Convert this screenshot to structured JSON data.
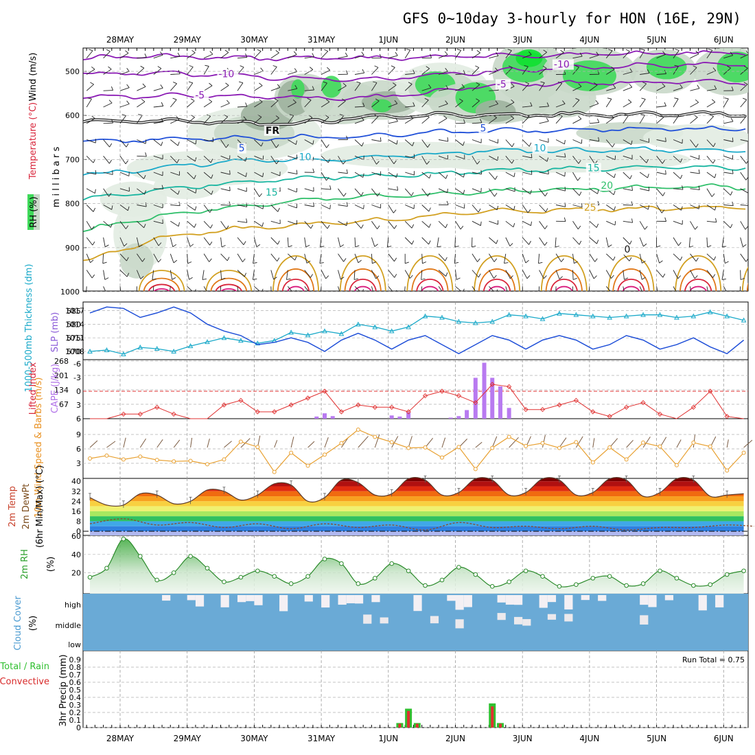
{
  "title": "GFS 0~10day 3-hourly for HON (16E, 29N)",
  "dates": [
    "28MAY",
    "29MAY",
    "30MAY",
    "31MAY",
    "1JUN",
    "2JUN",
    "3JUN",
    "4JUN",
    "5JUN",
    "6JUN"
  ],
  "colors": {
    "purple": "#8a1ab4",
    "blue": "#1f4fd8",
    "cyan": "#19a9c9",
    "teal": "#17b5a0",
    "green": "#2fbf6a",
    "gold": "#d2a020",
    "orange": "#e07818",
    "red": "#d8243a",
    "magenta": "#d8187a",
    "rhfill": "#c9d8c9",
    "rhdark": "#9fb39f",
    "rhgreen": "#3fd95a",
    "cloud": "#6aaad6"
  },
  "chart_data": [
    {
      "type": "contour",
      "panel": "upper-air",
      "ylabel": "m i l l i b a r s",
      "legend_labels": [
        "Wind (m/s)",
        "Temperature (°C)",
        "RH (%)"
      ],
      "ytick_labels": [
        "500",
        "600",
        "700",
        "800",
        "900",
        "1000"
      ],
      "yticks": [
        500,
        600,
        700,
        800,
        900,
        1000
      ],
      "ylim": [
        1000,
        450
      ],
      "isotherm_labels": [
        {
          "text": "-10",
          "level": -10,
          "day": 1.55,
          "p": 512
        },
        {
          "text": "-5",
          "level": -5,
          "day": 1.2,
          "p": 560
        },
        {
          "text": "FR",
          "level": 0,
          "day": 2.25,
          "p": 640
        },
        {
          "text": "5",
          "level": 5,
          "day": 1.85,
          "p": 680
        },
        {
          "text": "10",
          "level": 10,
          "day": 2.75,
          "p": 700
        },
        {
          "text": "15",
          "level": 15,
          "day": 2.25,
          "p": 780
        },
        {
          "text": "-10",
          "level": -10,
          "day": 6.55,
          "p": 490
        },
        {
          "text": "-5",
          "level": -5,
          "day": 5.7,
          "p": 535
        },
        {
          "text": "5",
          "level": 5,
          "day": 5.45,
          "p": 635
        },
        {
          "text": "10",
          "level": 10,
          "day": 6.25,
          "p": 680
        },
        {
          "text": "15",
          "level": 15,
          "day": 7.05,
          "p": 725
        },
        {
          "text": "20",
          "level": 20,
          "day": 7.25,
          "p": 765
        },
        {
          "text": "25",
          "level": 25,
          "day": 7.0,
          "p": 815
        },
        {
          "text": "0",
          "level": 0,
          "day": 7.6,
          "p": 910
        }
      ]
    },
    {
      "type": "line",
      "panel": "sfc-pressure",
      "legend_labels": [
        "1000-500mb Thickness (dm)",
        "SLP (mb)"
      ],
      "left_ticks": [
        "585",
        "580",
        "575",
        "570"
      ],
      "right_ticks": [
        "1017",
        "1014",
        "1011",
        "1008"
      ],
      "series": [
        {
          "name": "1000-500mb Thickness (dm)",
          "unit": "dm",
          "x": [
            0,
            0.25,
            0.5,
            0.75,
            1,
            1.25,
            1.5,
            1.75,
            2,
            2.25,
            2.5,
            2.75,
            3,
            3.25,
            3.5,
            3.75,
            4,
            4.25,
            4.5,
            4.75,
            5,
            5.25,
            5.5,
            5.75,
            6,
            6.25,
            6.5,
            6.75,
            7,
            7.25,
            7.5,
            7.75,
            8,
            8.25,
            8.5,
            8.75,
            9,
            9.25,
            9.5,
            9.75
          ],
          "y": [
            570,
            570.5,
            569,
            571.5,
            571,
            570,
            572,
            573.5,
            575,
            574,
            573,
            574,
            577,
            576,
            577.5,
            576.5,
            580,
            579,
            577.5,
            579,
            583,
            582.5,
            581,
            580.5,
            581,
            583.5,
            583,
            582,
            584,
            583.5,
            583,
            582.5,
            583,
            583.5,
            583.5,
            582.5,
            583,
            584.5,
            583,
            581.5
          ]
        },
        {
          "name": "SLP (mb)",
          "unit": "mb",
          "x": [
            0,
            0.25,
            0.5,
            0.75,
            1,
            1.25,
            1.5,
            1.75,
            2,
            2.25,
            2.5,
            2.75,
            3,
            3.25,
            3.5,
            3.75,
            4,
            4.25,
            4.5,
            4.75,
            5,
            5.25,
            5.5,
            5.75,
            6,
            6.25,
            6.5,
            6.75,
            7,
            7.25,
            7.5,
            7.75,
            8,
            8.25,
            8.5,
            8.75,
            9,
            9.25,
            9.5,
            9.75
          ],
          "y": [
            1016.5,
            1017.8,
            1017.5,
            1015.5,
            1016.5,
            1017.8,
            1016.5,
            1014,
            1012.5,
            1011.5,
            1009.5,
            1010,
            1011,
            1010,
            1008,
            1010.5,
            1012,
            1010.5,
            1008.5,
            1010.5,
            1011.5,
            1009.5,
            1007.5,
            1009.5,
            1011.5,
            1010.5,
            1008.5,
            1010.5,
            1011.5,
            1010.5,
            1008.5,
            1009.5,
            1011.5,
            1010.5,
            1008.5,
            1009.5,
            1011,
            1009,
            1007.5,
            1010.5
          ]
        }
      ]
    },
    {
      "type": "bar+line",
      "panel": "stability",
      "legend_labels": [
        "Lifted Index",
        "CAPE (J/kg)"
      ],
      "li_ticks": [
        "-6",
        "-3",
        "0",
        "3",
        "6"
      ],
      "cape_ticks": [
        "268",
        "201",
        "134",
        "67"
      ],
      "series": [
        {
          "name": "Lifted Index",
          "x": [
            0,
            0.25,
            0.5,
            0.75,
            1,
            1.25,
            1.5,
            1.75,
            2,
            2.25,
            2.5,
            2.75,
            3,
            3.25,
            3.5,
            3.75,
            4,
            4.25,
            4.5,
            4.75,
            5,
            5.25,
            5.5,
            5.75,
            6,
            6.25,
            6.5,
            6.75,
            7,
            7.25,
            7.5,
            7.75,
            8,
            8.25,
            8.5,
            8.75,
            9,
            9.25,
            9.5,
            9.75
          ],
          "y": [
            6,
            6,
            5,
            5,
            3.5,
            5,
            6,
            6,
            3,
            2,
            4.5,
            4.5,
            3,
            1.5,
            0,
            4.5,
            3,
            3.5,
            3.5,
            4.5,
            1,
            0,
            1,
            2.5,
            -1.5,
            -1,
            4,
            4,
            3,
            2,
            4.5,
            5.5,
            3.5,
            2.5,
            5,
            6,
            3.5,
            0,
            5.5,
            6
          ]
        },
        {
          "name": "CAPE (J/kg)",
          "x": [
            3.38,
            3.5,
            3.62,
            4.5,
            4.62,
            4.75,
            5.38,
            5.5,
            5.62,
            5.75,
            5.88,
            6.0,
            6.12,
            6.25
          ],
          "y": [
            10,
            25,
            12,
            15,
            10,
            30,
            5,
            12,
            40,
            190,
            260,
            190,
            150,
            50
          ]
        }
      ]
    },
    {
      "type": "line",
      "panel": "wind10m",
      "legend_labels": [
        "10m Wind Speed & Barbs (m/s)"
      ],
      "ytick_labels": [
        "9",
        "6",
        "3"
      ],
      "series": [
        {
          "name": "10m Wind Speed & Barbs (m/s)",
          "unit": "m/s",
          "x": [
            0,
            0.25,
            0.5,
            0.75,
            1,
            1.25,
            1.5,
            1.75,
            2,
            2.25,
            2.5,
            2.75,
            3,
            3.25,
            3.5,
            3.75,
            4,
            4.25,
            4.5,
            4.75,
            5,
            5.25,
            5.5,
            5.75,
            6,
            6.25,
            6.5,
            6.75,
            7,
            7.25,
            7.5,
            7.75,
            8,
            8.25,
            8.5,
            8.75,
            9,
            9.25,
            9.5,
            9.75
          ],
          "y": [
            4,
            4.6,
            3.8,
            4.4,
            3.7,
            3.4,
            3.5,
            2.8,
            3.8,
            7.5,
            6.4,
            1.2,
            5.2,
            2.5,
            4.8,
            7.2,
            10,
            8.5,
            7.4,
            6.2,
            6.3,
            4.2,
            6.4,
            1.8,
            6.2,
            8.5,
            6.6,
            7.2,
            6.2,
            7.4,
            3.2,
            6.3,
            3.8,
            7.3,
            6.5,
            2.6,
            7.3,
            6.5,
            1.5,
            5.2
          ]
        }
      ]
    },
    {
      "type": "area",
      "panel": "temp2m",
      "legend_labels": [
        "2m Temp",
        "2m DewPt",
        "(6hr Min/Max) (°C)"
      ],
      "ytick_labels": [
        "40",
        "32",
        "24",
        "16",
        "8",
        "0"
      ],
      "series": [
        {
          "name": "2m Temp",
          "unit": "°C",
          "x": [
            0,
            0.25,
            0.5,
            0.75,
            1,
            1.25,
            1.5,
            1.75,
            2,
            2.25,
            2.5,
            2.75,
            3,
            3.25,
            3.5,
            3.75,
            4,
            4.25,
            4.5,
            4.75,
            5,
            5.25,
            5.5,
            5.75,
            6,
            6.25,
            6.5,
            6.75,
            7,
            7.25,
            7.5,
            7.75,
            8,
            8.25,
            8.5,
            8.75,
            9,
            9.25,
            9.5,
            9.75
          ],
          "y": [
            27,
            21,
            21,
            30,
            29,
            22,
            24,
            33,
            32,
            25,
            29,
            38,
            37,
            24,
            27,
            41,
            39,
            29,
            30,
            42,
            41,
            29,
            31,
            42,
            41,
            29,
            31,
            42,
            41,
            29,
            31,
            42,
            41,
            28,
            31,
            42,
            41,
            28,
            29,
            30
          ]
        },
        {
          "name": "2m DewPt",
          "unit": "°C",
          "x": [
            0,
            0.5,
            1,
            1.5,
            2,
            2.5,
            3,
            3.5,
            4,
            4.5,
            5,
            5.5,
            6,
            6.5,
            7,
            7.5,
            8,
            8.5,
            9,
            9.5,
            9.9
          ],
          "y": [
            6,
            10,
            5,
            7,
            3,
            6,
            2,
            6,
            3,
            5,
            1,
            7,
            3,
            4,
            2,
            4,
            1,
            3,
            3,
            5,
            4
          ]
        }
      ]
    },
    {
      "type": "area",
      "panel": "rh2m",
      "legend_labels": [
        "2m RH",
        "(%)"
      ],
      "ytick_labels": [
        "60",
        "40",
        "20"
      ],
      "series": [
        {
          "name": "2m RH",
          "unit": "%",
          "x": [
            0,
            0.25,
            0.5,
            0.75,
            1,
            1.25,
            1.5,
            1.75,
            2,
            2.25,
            2.5,
            2.75,
            3,
            3.25,
            3.5,
            3.75,
            4,
            4.25,
            4.5,
            4.75,
            5,
            5.25,
            5.5,
            5.75,
            6,
            6.25,
            6.5,
            6.75,
            7,
            7.25,
            7.5,
            7.75,
            8,
            8.25,
            8.5,
            8.75,
            9,
            9.25,
            9.5,
            9.75
          ],
          "y": [
            15,
            25,
            57,
            38,
            12,
            20,
            38,
            25,
            10,
            15,
            22,
            16,
            8,
            16,
            35,
            30,
            8,
            14,
            30,
            22,
            6,
            12,
            26,
            18,
            5,
            10,
            22,
            16,
            5,
            7,
            14,
            16,
            6,
            8,
            22,
            14,
            6,
            7,
            18,
            22
          ]
        }
      ]
    },
    {
      "type": "heatmap",
      "panel": "cloud",
      "legend_labels": [
        "Cloud Cover",
        "(%)"
      ],
      "ytick_labels": [
        "high",
        "middle",
        "low"
      ]
    },
    {
      "type": "bar",
      "panel": "precip",
      "legend_labels": [
        "Total / Rain",
        "Convective",
        "3hr Precip (mm)"
      ],
      "run_total": "Run Total = 0.75",
      "ytick_labels": [
        "0.8",
        "0.6",
        "0.4",
        "0.2",
        "0"
      ],
      "yticks_minor": [
        "0.9",
        "0.7",
        "0.5",
        "0.3",
        "0.1"
      ],
      "series": [
        {
          "name": "Total / Rain",
          "x": [
            4.62,
            4.75,
            4.88,
            6.0,
            6.12
          ],
          "y": [
            0.06,
            0.25,
            0.06,
            0.32,
            0.06
          ]
        },
        {
          "name": "Convective",
          "x": [
            4.62,
            4.75,
            4.88,
            6.0,
            6.12
          ],
          "y": [
            0.05,
            0.22,
            0.05,
            0.28,
            0.05
          ]
        }
      ]
    }
  ]
}
